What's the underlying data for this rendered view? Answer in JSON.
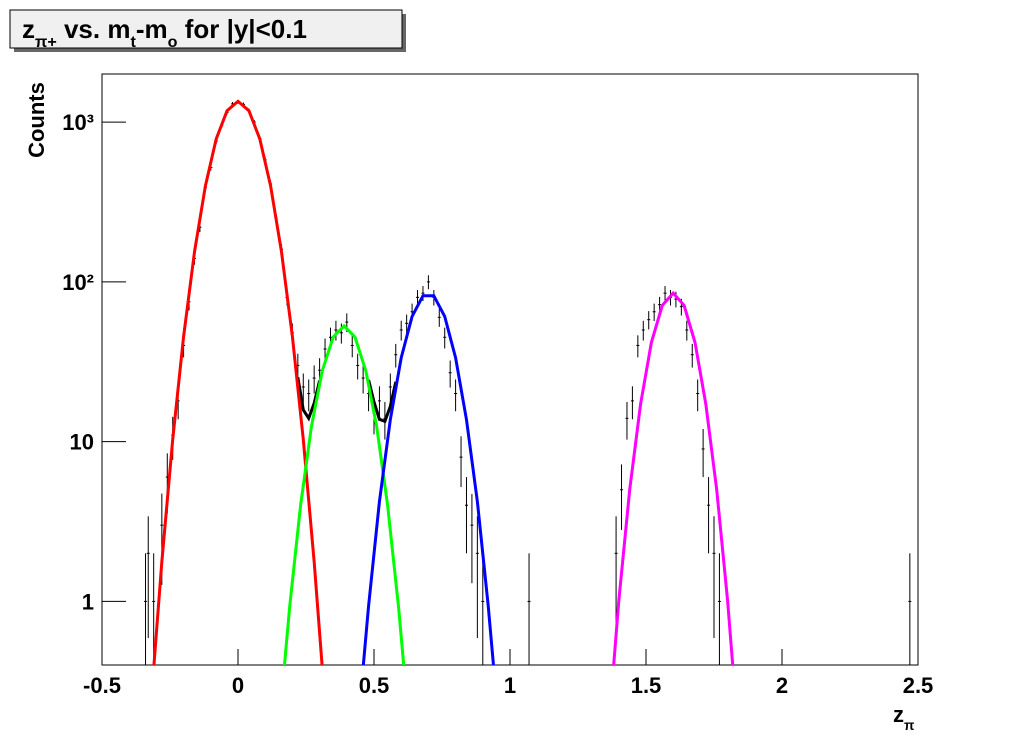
{
  "chart_data": {
    "type": "line",
    "title": [
      {
        "text": "z"
      },
      {
        "text": "π+",
        "sub": true
      },
      {
        "text": " vs. m"
      },
      {
        "text": "t",
        "sub": true
      },
      {
        "text": "-m"
      },
      {
        "text": "o",
        "sub": true
      },
      {
        "text": " for |y|<0.1"
      }
    ],
    "x_label": [
      {
        "text": "z"
      },
      {
        "text": "π",
        "sub": true
      }
    ],
    "y_label": "Counts",
    "xlim": [
      -0.5,
      2.5
    ],
    "xticks": [
      -0.5,
      0,
      0.5,
      1,
      1.5,
      2,
      2.5
    ],
    "ylim": [
      0.4,
      2000
    ],
    "yticks": [
      1,
      10,
      {
        "value": 100,
        "label": "10²"
      },
      {
        "value": 1000,
        "label": "10³"
      }
    ],
    "log_y": true,
    "grid": false,
    "series": [
      {
        "type": "errorbar",
        "color": "#000000",
        "x": [
          -0.34,
          -0.33,
          -0.31,
          -0.28,
          -0.26,
          -0.24,
          -0.22,
          -0.2,
          -0.18,
          -0.16,
          -0.14,
          -0.12,
          -0.1,
          -0.08,
          -0.06,
          -0.04,
          -0.02,
          0,
          0.02,
          0.04,
          0.06,
          0.08,
          0.1,
          0.12,
          0.14,
          0.16,
          0.18,
          0.2,
          0.22,
          0.24,
          0.26,
          0.28,
          0.3,
          0.32,
          0.34,
          0.36,
          0.38,
          0.4,
          0.42,
          0.44,
          0.46,
          0.48,
          0.5,
          0.52,
          0.54,
          0.56,
          0.58,
          0.6,
          0.62,
          0.64,
          0.66,
          0.68,
          0.7,
          0.72,
          0.74,
          0.76,
          0.78,
          0.8,
          0.82,
          0.84,
          0.86,
          0.88,
          0.9,
          1.07,
          1.39,
          1.41,
          1.43,
          1.45,
          1.47,
          1.49,
          1.51,
          1.53,
          1.55,
          1.57,
          1.59,
          1.61,
          1.63,
          1.65,
          1.67,
          1.69,
          1.71,
          1.73,
          1.75,
          1.77,
          2.47
        ],
        "values": [
          1,
          2,
          1,
          3,
          6,
          11,
          18,
          40,
          75,
          140,
          220,
          390,
          520,
          760,
          950,
          1150,
          1300,
          1340,
          1290,
          1180,
          1000,
          790,
          580,
          410,
          250,
          160,
          80,
          48,
          30,
          22,
          20,
          25,
          28,
          38,
          45,
          50,
          48,
          56,
          40,
          30,
          25,
          20,
          15,
          18,
          14,
          22,
          35,
          50,
          55,
          65,
          80,
          85,
          100,
          80,
          60,
          45,
          27,
          20,
          8,
          4,
          3,
          2,
          1,
          1,
          2,
          5,
          14,
          18,
          40,
          50,
          58,
          65,
          72,
          85,
          80,
          78,
          70,
          50,
          35,
          20,
          9,
          4,
          2,
          1,
          1
        ],
        "errors": [
          1,
          1.41,
          1,
          1.73,
          2.45,
          3.3,
          4.2,
          6.3,
          8.7,
          11.8,
          14.8,
          19.7,
          22.8,
          27.6,
          30.8,
          33.9,
          36.1,
          36.6,
          35.9,
          34.4,
          31.6,
          28.1,
          24.1,
          20.2,
          15.8,
          12.6,
          8.9,
          6.9,
          5.5,
          4.7,
          4.5,
          5,
          5.3,
          6.2,
          6.7,
          7.1,
          6.9,
          7.5,
          6.3,
          5.5,
          5,
          4.5,
          3.9,
          4.2,
          3.7,
          4.7,
          5.9,
          7.1,
          7.4,
          8.1,
          8.9,
          9.2,
          10,
          8.9,
          7.7,
          6.7,
          5.2,
          4.5,
          2.8,
          2,
          1.7,
          1.41,
          1,
          1,
          1.41,
          2.2,
          3.7,
          4.2,
          6.3,
          7.1,
          7.6,
          8.1,
          8.5,
          9.2,
          8.9,
          8.8,
          8.4,
          7.1,
          5.9,
          4.5,
          3,
          2,
          1.41,
          1,
          1
        ]
      },
      {
        "type": "line",
        "color": "#000000",
        "x": [
          0.22,
          0.24,
          0.26,
          0.28,
          0.3,
          null,
          0.48,
          0.5,
          0.52,
          0.54,
          0.56,
          0.58
        ],
        "values": [
          25.3,
          15.8,
          14,
          17.4,
          24.1,
          null,
          24.3,
          17.7,
          13.8,
          13.4,
          16.6,
          23.7
        ]
      },
      {
        "type": "line",
        "color": "#ff0000",
        "x": [
          -0.32,
          -0.28,
          -0.24,
          -0.2,
          -0.16,
          -0.12,
          -0.08,
          -0.04,
          0,
          0.04,
          0.08,
          0.12,
          0.16,
          0.2,
          0.24,
          0.28,
          0.32
        ],
        "values": [
          0.23,
          1.76,
          10.3,
          45.5,
          154,
          399,
          785,
          1179,
          1350,
          1179,
          785,
          399,
          154,
          45.5,
          10.3,
          1.76,
          0.23
        ]
      },
      {
        "type": "line",
        "color": "#00ff00",
        "x": [
          0.15,
          0.19,
          0.23,
          0.27,
          0.31,
          0.35,
          0.39,
          0.43,
          0.47,
          0.51,
          0.55,
          0.59,
          0.63
        ],
        "values": [
          0.16,
          0.93,
          4,
          12.4,
          27.8,
          45.1,
          53,
          45.1,
          27.8,
          12.4,
          4,
          0.93,
          0.16
        ]
      },
      {
        "type": "line",
        "color": "#0000ff",
        "x": [
          0.44,
          0.48,
          0.52,
          0.56,
          0.6,
          0.64,
          0.68,
          0.72,
          0.76,
          0.8,
          0.84,
          0.88,
          0.92,
          0.96
        ],
        "values": [
          0.16,
          0.94,
          4.2,
          13.7,
          33.5,
          60.8,
          81.9,
          81.9,
          60.8,
          33.5,
          13.7,
          4.2,
          0.94,
          0.16
        ]
      },
      {
        "type": "line",
        "color": "#ff00ff",
        "x": [
          1.36,
          1.4,
          1.44,
          1.48,
          1.52,
          1.56,
          1.6,
          1.64,
          1.68,
          1.72,
          1.76,
          1.8,
          1.84
        ],
        "values": [
          0.14,
          1.01,
          5,
          17.2,
          41.8,
          71.2,
          85,
          71.2,
          41.8,
          17.2,
          5,
          1.01,
          0.14
        ]
      }
    ]
  }
}
